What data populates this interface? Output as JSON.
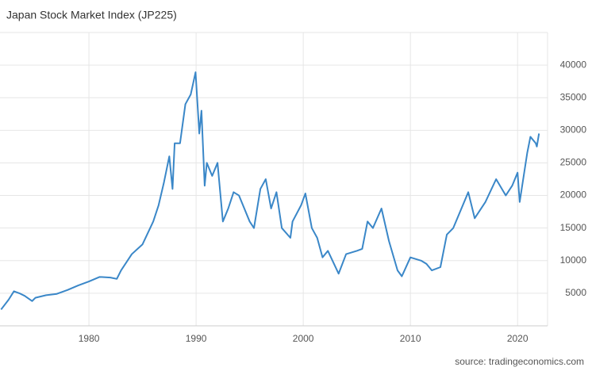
{
  "chart_data": {
    "type": "line",
    "title": "Japan Stock Market Index (JP225)",
    "source": "source: tradingeconomics.com",
    "x": [
      1971.8,
      1972.5,
      1973,
      1973.5,
      1974,
      1974.7,
      1975,
      1976,
      1977,
      1978,
      1979,
      1980,
      1981,
      1982,
      1982.6,
      1983,
      1984,
      1985,
      1986,
      1986.5,
      1987,
      1987.5,
      1987.8,
      1988,
      1988.5,
      1989,
      1989.5,
      1989.95,
      1990.3,
      1990.5,
      1990.8,
      1991,
      1991.5,
      1992,
      1992.5,
      1993,
      1993.5,
      1994,
      1995,
      1995.4,
      1996,
      1996.5,
      1997,
      1997.5,
      1998,
      1998.8,
      1999,
      1999.8,
      2000.2,
      2000.8,
      2001.3,
      2001.8,
      2002.3,
      2003.3,
      2004,
      2005,
      2005.5,
      2006,
      2006.5,
      2007.3,
      2008,
      2008.8,
      2009.2,
      2010,
      2011,
      2011.5,
      2012,
      2012.8,
      2013.4,
      2014,
      2015.4,
      2016,
      2017,
      2018,
      2018.9,
      2019.5,
      2020,
      2020.2,
      2020.9,
      2021.2,
      2021.7,
      2021.8,
      2022
    ],
    "values": [
      2500,
      4000,
      5300,
      5000,
      4600,
      3800,
      4300,
      4700,
      4900,
      5500,
      6200,
      6800,
      7500,
      7400,
      7200,
      8500,
      11000,
      12500,
      16000,
      18500,
      22000,
      26000,
      21000,
      28000,
      28000,
      34000,
      35500,
      38900,
      29500,
      33000,
      21500,
      25000,
      23000,
      25000,
      16000,
      18000,
      20500,
      20000,
      16000,
      15000,
      21000,
      22500,
      18000,
      20500,
      15000,
      13500,
      16000,
      18500,
      20300,
      15000,
      13500,
      10500,
      11500,
      8000,
      11000,
      11500,
      11800,
      16000,
      15000,
      18000,
      13000,
      8500,
      7600,
      10500,
      10000,
      9500,
      8500,
      9000,
      14000,
      15000,
      20500,
      16500,
      19000,
      22500,
      20000,
      21500,
      23500,
      19000,
      26500,
      29000,
      28000,
      27500,
      29500
    ],
    "color": "#3a87c8",
    "xlim": [
      1971.7,
      2022.8
    ],
    "xticks": [
      1980,
      1990,
      2000,
      2010,
      2020
    ],
    "ylim": [
      0,
      45000
    ],
    "yticks": [
      5000,
      10000,
      15000,
      20000,
      25000,
      30000,
      35000,
      40000
    ],
    "grid": true
  }
}
